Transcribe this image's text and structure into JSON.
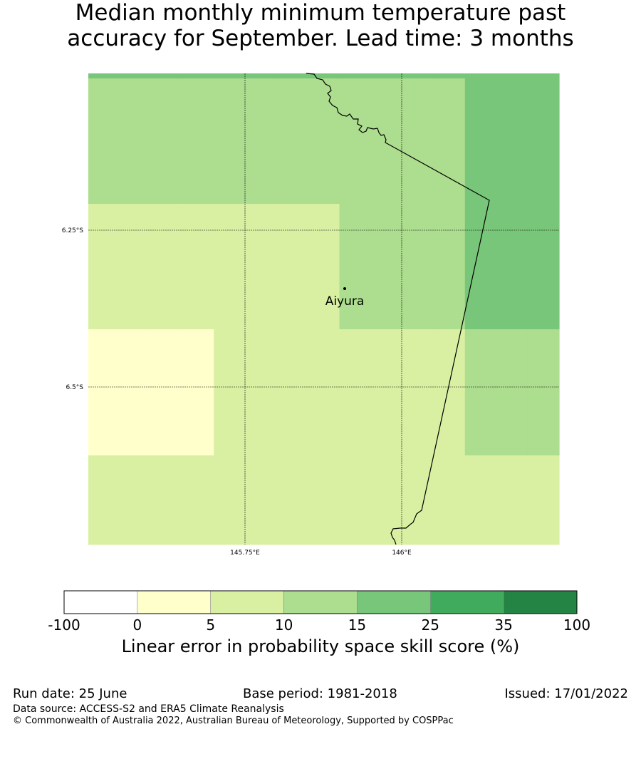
{
  "title": {
    "line1": "Median monthly minimum temperature past",
    "line2": "accuracy for September. Lead time: 3 months"
  },
  "map": {
    "lat_ticks": [
      "6.25°S",
      "6.5°S"
    ],
    "lon_ticks": [
      "145.75°E",
      "146°E"
    ],
    "location": {
      "name": "Aiyura"
    },
    "skill_grid": [
      [
        15,
        15,
        15,
        15,
        15,
        15,
        15,
        15,
        15,
        15,
        15,
        15,
        15,
        15,
        15
      ],
      [
        10,
        10,
        10,
        10,
        10,
        10,
        10,
        10,
        10,
        10,
        10,
        10,
        15,
        15,
        15
      ],
      [
        5,
        5,
        5,
        5,
        5,
        5,
        5,
        5,
        10,
        10,
        10,
        10,
        15,
        15,
        15
      ],
      [
        0,
        0,
        0,
        0,
        5,
        5,
        5,
        5,
        5,
        5,
        5,
        5,
        10,
        10,
        10
      ],
      [
        5,
        5,
        5,
        5,
        5,
        5,
        5,
        5,
        5,
        5,
        5,
        5,
        5,
        5,
        5
      ]
    ]
  },
  "colorbar": {
    "boundaries": [
      "-100",
      "0",
      "5",
      "10",
      "15",
      "25",
      "35",
      "100"
    ],
    "colors": [
      "#ffffff",
      "#ffffcc",
      "#d9f0a3",
      "#addd8e",
      "#78c679",
      "#41ab5d",
      "#238443"
    ],
    "label": "Linear error in probability space skill score (%)"
  },
  "footer": {
    "run_date": "Run date: 25 June",
    "base_period": "Base period: 1981-2018",
    "issued": "Issued: 17/01/2022",
    "data_source": "Data source: ACCESS-S2 and ERA5 Climate Reanalysis",
    "copyright": "© Commonwealth of Australia 2022, Australian Bureau of Meteorology, Supported by COSPPac"
  }
}
